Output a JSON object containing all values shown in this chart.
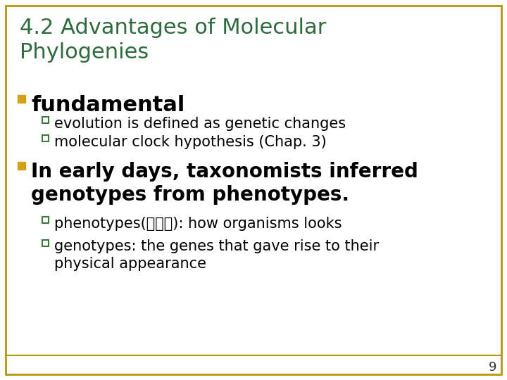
{
  "title": "4.2 Advantages of Molecular\nPhylogenies",
  "title_color": "#2E6B3E",
  "title_fontsize": 22,
  "background_color": "#FFFFFF",
  "border_color": "#B8960C",
  "page_number": "9",
  "bullet1_text": "fundamental",
  "bullet1_fontsize": 22,
  "bullet_color": "#D4A017",
  "sub_bullet_color": "#3A7A3A",
  "sub_bullet1_1": "evolution is defined as genetic changes",
  "sub_bullet1_2": "molecular clock hypothesis (Chap. 3)",
  "sub_fontsize": 15,
  "bullet2_text": "In early days, taxonomists inferred\ngenotypes from phenotypes.",
  "bullet2_fontsize": 20,
  "sub_bullet2_1": "phenotypes(表現型): how organisms looks",
  "sub_bullet2_2": "genotypes: the genes that gave rise to their\nphysical appearance",
  "font_family": "DejaVu Sans",
  "line_color": "#B8960C"
}
